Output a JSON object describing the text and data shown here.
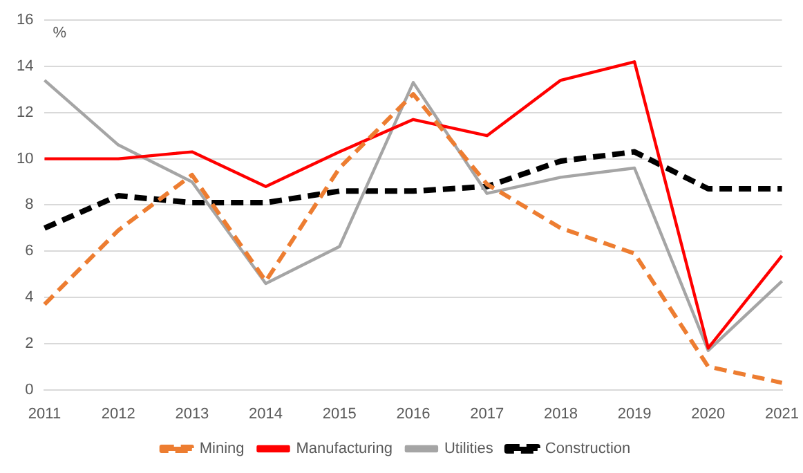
{
  "chart_data": {
    "type": "line",
    "ylabel": "%",
    "categories": [
      "2011",
      "2012",
      "2013",
      "2014",
      "2015",
      "2016",
      "2017",
      "2018",
      "2019",
      "2020",
      "2021"
    ],
    "series": [
      {
        "name": "Mining",
        "color": "#ed7d31",
        "line_style": "dashed",
        "values": [
          3.7,
          6.9,
          9.3,
          4.7,
          9.6,
          12.8,
          8.9,
          7.0,
          5.9,
          1.0,
          0.3
        ]
      },
      {
        "name": "Manufacturing",
        "color": "#ff0000",
        "line_style": "solid",
        "values": [
          10.0,
          10.0,
          10.3,
          8.8,
          10.3,
          11.7,
          11.0,
          13.4,
          14.2,
          1.8,
          5.8
        ]
      },
      {
        "name": "Utilities",
        "color": "#a5a5a5",
        "line_style": "solid",
        "values": [
          13.4,
          10.6,
          9.0,
          4.6,
          6.2,
          13.3,
          8.5,
          9.2,
          9.6,
          1.7,
          4.7
        ]
      },
      {
        "name": "Construction",
        "color": "#000000",
        "line_style": "dashed",
        "values": [
          7.0,
          8.4,
          8.1,
          8.1,
          8.6,
          8.6,
          8.8,
          9.9,
          10.3,
          8.7,
          8.7
        ]
      }
    ],
    "ylim": [
      0,
      16
    ],
    "yticks": [
      0,
      2,
      4,
      6,
      8,
      10,
      12,
      14,
      16
    ],
    "grid": "y",
    "legend": "bottom",
    "marker": "none"
  }
}
